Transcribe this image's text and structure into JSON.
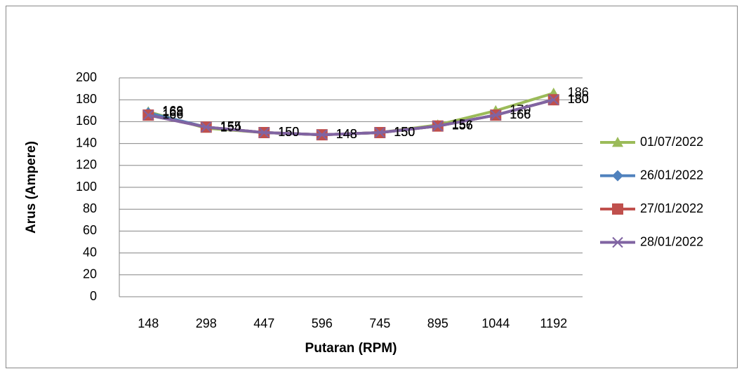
{
  "chart_data": {
    "type": "line",
    "categories": [
      "148",
      "298",
      "447",
      "596",
      "745",
      "895",
      "1044",
      "1192"
    ],
    "series": [
      {
        "name": "01/07/2022",
        "color": "#9bbb59",
        "marker": "triangle",
        "values": [
          169,
          154,
          150,
          148,
          150,
          157,
          170,
          186
        ]
      },
      {
        "name": "26/01/2022",
        "color": "#4f81bd",
        "marker": "diamond",
        "values": [
          168,
          155,
          150,
          148,
          150,
          156,
          166,
          180
        ]
      },
      {
        "name": "27/01/2022",
        "color": "#c0504d",
        "marker": "square",
        "values": [
          166,
          155,
          150,
          148,
          150,
          156,
          166,
          180
        ]
      },
      {
        "name": "28/01/2022",
        "color": "#8064a2",
        "marker": "x",
        "values": [
          166,
          155,
          150,
          148,
          150,
          156,
          166,
          180
        ]
      }
    ],
    "x_label": "Putaran (RPM)",
    "y_label": "Arus (Ampere)",
    "ylim": [
      0,
      200
    ],
    "yticks": [
      0,
      20,
      40,
      60,
      80,
      100,
      120,
      140,
      160,
      180,
      200
    ],
    "grid": true,
    "legend": "right"
  }
}
